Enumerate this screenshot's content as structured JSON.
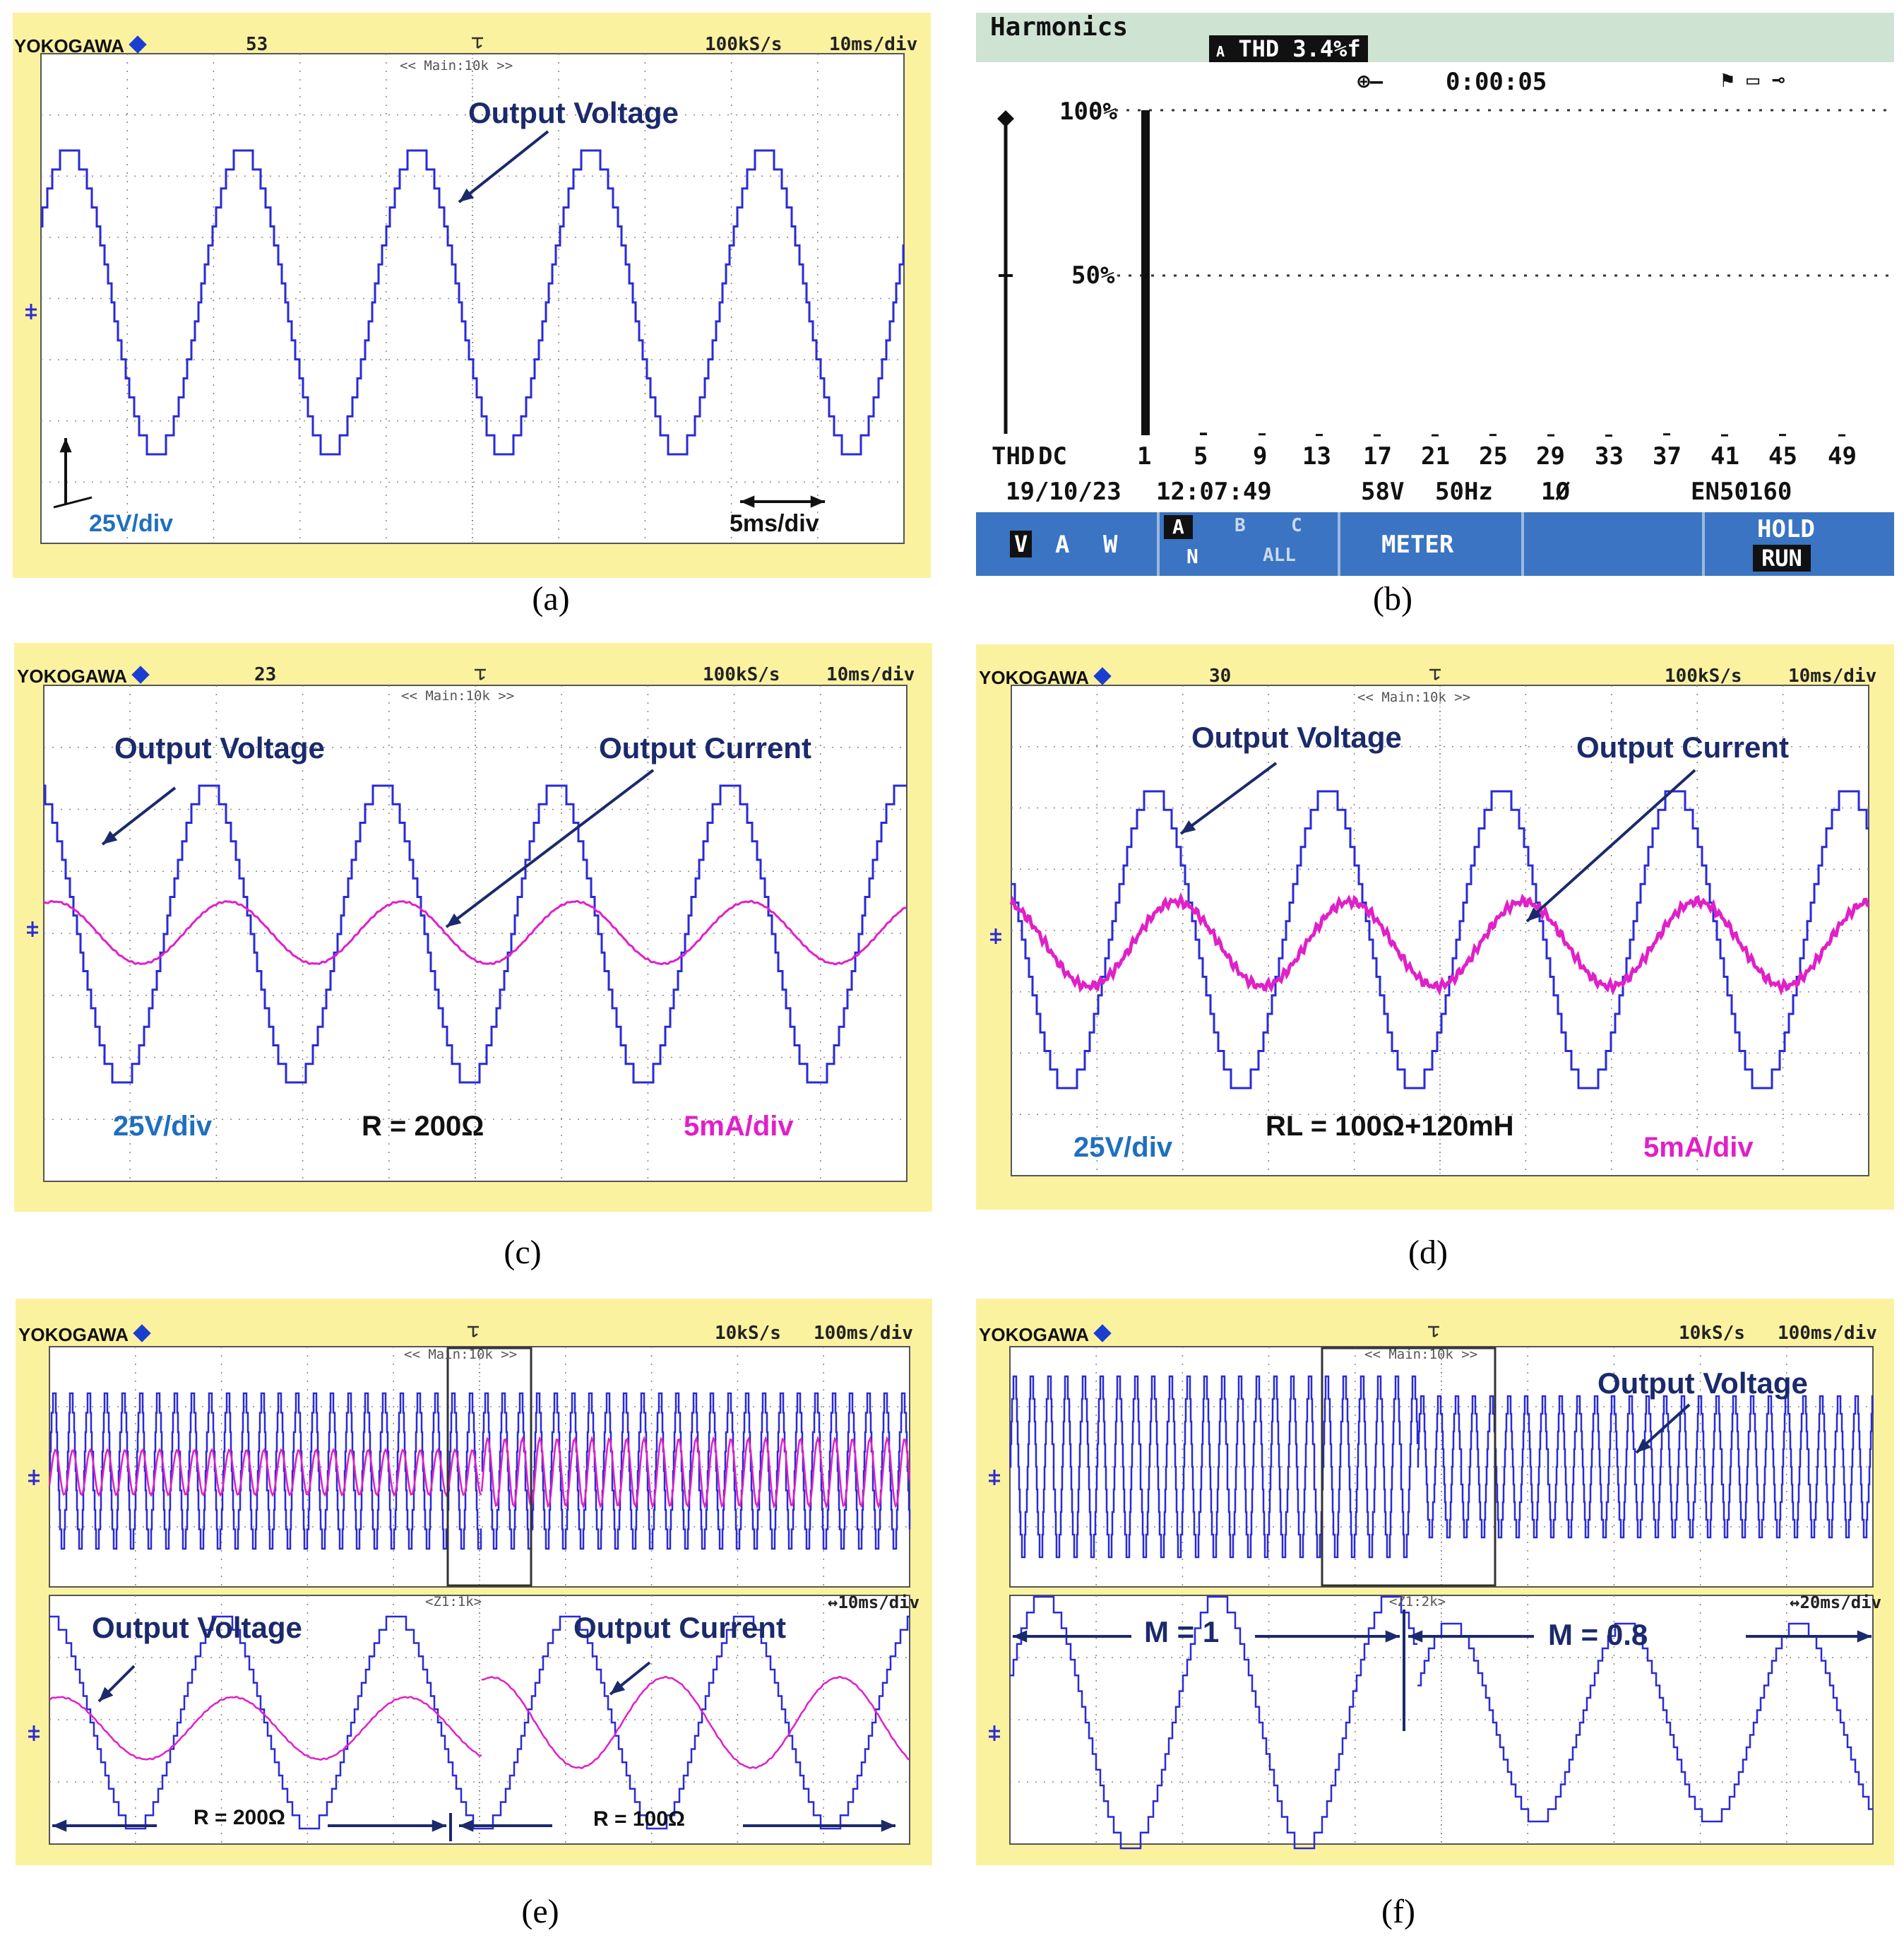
{
  "panels": {
    "a": {
      "caption": "(a)",
      "brand": "YOKOGAWA",
      "record": "53",
      "rate": "100kS/s",
      "timebase": "10ms/div",
      "zoom_label": "<< Main:10k >>",
      "label_voltage": "Output Voltage",
      "vdiv": "25V/div",
      "tdiv": "5ms/div"
    },
    "b": {
      "caption": "(b)",
      "title": "Harmonics",
      "thd_label": "THD",
      "thd_value": "3.4%f",
      "phase_tag": "A",
      "timer": "0:00:05",
      "y_top": "100%",
      "y_mid": "50%",
      "x_labels": [
        "THD",
        "DC",
        "1",
        "5",
        "9",
        "13",
        "17",
        "21",
        "25",
        "29",
        "33",
        "37",
        "41",
        "45",
        "49"
      ],
      "date": "19/10/23",
      "time": "12:07:49",
      "voltage": "58V",
      "freq": "50Hz",
      "phase": "1Ø",
      "standard": "EN50160",
      "btn_v": "V",
      "btn_a": "A",
      "btn_w": "W",
      "btn_ph_a": "A",
      "btn_ph_b": "B",
      "btn_ph_c": "C",
      "btn_ph_n": "N",
      "btn_ph_all": "ALL",
      "btn_meter": "METER",
      "btn_hold": "HOLD",
      "btn_run": "RUN",
      "chart_data": {
        "type": "bar",
        "categories": [
          "1",
          "5",
          "9",
          "13",
          "17",
          "21",
          "25",
          "29",
          "33",
          "37",
          "41",
          "45",
          "49"
        ],
        "values": [
          100,
          0.8,
          0.6,
          0.4,
          0.3,
          0.3,
          0.4,
          0.3,
          0.2,
          0.6,
          0.3,
          0.4,
          0.3
        ],
        "ylim": [
          0,
          100
        ]
      }
    },
    "c": {
      "caption": "(c)",
      "brand": "YOKOGAWA",
      "record": "23",
      "rate": "100kS/s",
      "timebase": "10ms/div",
      "zoom_label": "<< Main:10k >>",
      "label_voltage": "Output Voltage",
      "label_current": "Output Current",
      "vdiv": "25V/div",
      "load": "R = 200Ω",
      "idiv": "5mA/div"
    },
    "d": {
      "caption": "(d)",
      "brand": "YOKOGAWA",
      "record": "30",
      "rate": "100kS/s",
      "timebase": "10ms/div",
      "zoom_label": "<< Main:10k >>",
      "label_voltage": "Output Voltage",
      "label_current": "Output Current",
      "vdiv": "25V/div",
      "load": "RL = 100Ω+120mH",
      "idiv": "5mA/div"
    },
    "e": {
      "caption": "(e)",
      "brand": "YOKOGAWA",
      "rate": "10kS/s",
      "timebase": "100ms/div",
      "zoom_label": "<< Main:10k >>",
      "zoom2_label": "<Z1:1k>",
      "zoom_timebase": "↔10ms/div",
      "label_voltage": "Output Voltage",
      "label_current": "Output Current",
      "load1": "R = 200Ω",
      "load2": "R = 100Ω"
    },
    "f": {
      "caption": "(f)",
      "brand": "YOKOGAWA",
      "rate": "10kS/s",
      "timebase": "100ms/div",
      "zoom_label": "<< Main:10k >>",
      "zoom2_label": "<Z1:2k>",
      "zoom_timebase": "↔20ms/div",
      "label_voltage": "Output Voltage",
      "m1": "M = 1",
      "m2": "M = 0.8"
    }
  },
  "colors": {
    "scope_bg": "#fbf2a0",
    "voltage": "#2a2ad6",
    "current": "#e020c8",
    "grid": "#8a8a8a"
  }
}
